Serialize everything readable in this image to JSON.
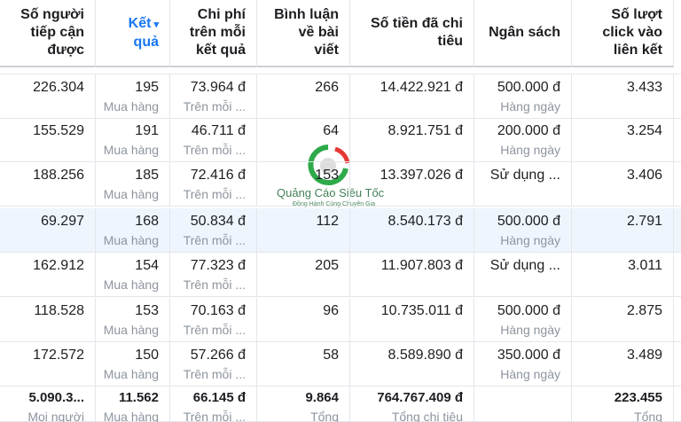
{
  "header": {
    "columns": [
      [
        "Số người",
        "tiếp cận",
        "được"
      ],
      [
        "Kết",
        "quả"
      ],
      [
        "Chi phí",
        "trên mỗi",
        "kết quả"
      ],
      [
        "Bình luận",
        "về bài",
        "viết"
      ],
      [
        "Số tiền đã chi",
        "tiêu"
      ],
      [
        "Ngân sách"
      ],
      [
        "Số lượt",
        "click vào",
        "liên kết"
      ]
    ]
  },
  "table": {
    "rows": [
      [
        {
          "main": "226.304"
        },
        {
          "main": "195",
          "sub": "Mua hàng"
        },
        {
          "main": "73.964 đ",
          "sub": "Trên mỗi ..."
        },
        {
          "main": "266"
        },
        {
          "main": "14.422.921 đ"
        },
        {
          "main": "500.000 đ",
          "sub": "Hàng ngày"
        },
        {
          "main": "3.433"
        }
      ],
      [
        {
          "main": "155.529"
        },
        {
          "main": "191",
          "sub": "Mua hàng"
        },
        {
          "main": "46.711 đ",
          "sub": "Trên mỗi ..."
        },
        {
          "main": "64"
        },
        {
          "main": "8.921.751 đ"
        },
        {
          "main": "200.000 đ",
          "sub": "Hàng ngày"
        },
        {
          "main": "3.254"
        }
      ],
      [
        {
          "main": "188.256"
        },
        {
          "main": "185",
          "sub": "Mua hàng"
        },
        {
          "main": "72.416 đ",
          "sub": "Trên mỗi ..."
        },
        {
          "main": "153"
        },
        {
          "main": "13.397.026 đ"
        },
        {
          "main": "Sử dụng ..."
        },
        {
          "main": "3.406"
        }
      ],
      [
        {
          "main": "69.297"
        },
        {
          "main": "168",
          "sub": "Mua hàng"
        },
        {
          "main": "50.834 đ",
          "sub": "Trên mỗi ..."
        },
        {
          "main": "112"
        },
        {
          "main": "8.540.173 đ"
        },
        {
          "main": "500.000 đ",
          "sub": "Hàng ngày"
        },
        {
          "main": "2.791"
        }
      ],
      [
        {
          "main": "162.912"
        },
        {
          "main": "154",
          "sub": "Mua hàng"
        },
        {
          "main": "77.323 đ",
          "sub": "Trên mỗi ..."
        },
        {
          "main": "205"
        },
        {
          "main": "11.907.803 đ"
        },
        {
          "main": "Sử dụng ..."
        },
        {
          "main": "3.011"
        }
      ],
      [
        {
          "main": "118.528"
        },
        {
          "main": "153",
          "sub": "Mua hàng"
        },
        {
          "main": "70.163 đ",
          "sub": "Trên mỗi ..."
        },
        {
          "main": "96"
        },
        {
          "main": "10.735.011 đ"
        },
        {
          "main": "500.000 đ",
          "sub": "Hàng ngày"
        },
        {
          "main": "2.875"
        }
      ],
      [
        {
          "main": "172.572"
        },
        {
          "main": "150",
          "sub": "Mua hàng"
        },
        {
          "main": "57.266 đ",
          "sub": "Trên mỗi ..."
        },
        {
          "main": "58"
        },
        {
          "main": "8.589.890 đ"
        },
        {
          "main": "350.000 đ",
          "sub": "Hàng ngày"
        },
        {
          "main": "3.489"
        }
      ]
    ],
    "total": [
      {
        "main": "5.090.3...",
        "sub": "Mọi người"
      },
      {
        "main": "11.562",
        "sub": "Mua hàng"
      },
      {
        "main": "66.145 đ",
        "sub": "Trên mỗi ..."
      },
      {
        "main": "9.864",
        "sub": "Tổng"
      },
      {
        "main": "764.767.409 đ",
        "sub": "Tổng chi tiêu"
      },
      null,
      {
        "main": "223.455",
        "sub": "Tổng"
      }
    ]
  },
  "watermark": {
    "title": "Quảng Cáo Siêu Tốc",
    "tagline": "Đồng Hành Cùng Chuyên Gia"
  }
}
